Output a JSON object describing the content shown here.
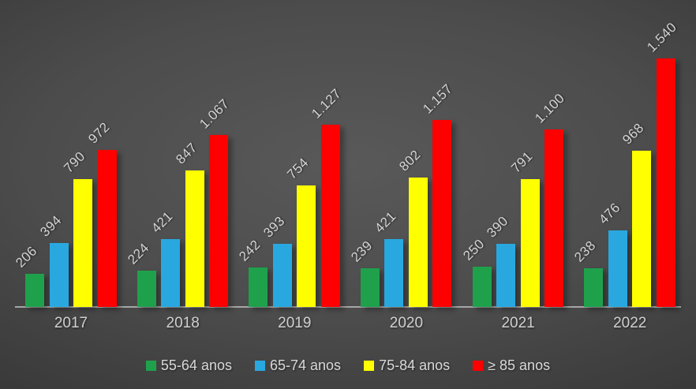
{
  "chart_data": {
    "type": "bar",
    "title": "",
    "xlabel": "",
    "ylabel": "",
    "categories": [
      "2017",
      "2018",
      "2019",
      "2020",
      "2021",
      "2022"
    ],
    "series": [
      {
        "name": "55-64 anos",
        "color": "#1fa14c",
        "values": [
          206,
          224,
          242,
          239,
          250,
          238
        ],
        "labels": [
          "206",
          "224",
          "242",
          "239",
          "250",
          "238"
        ]
      },
      {
        "name": "65-74 anos",
        "color": "#29a8e0",
        "values": [
          394,
          421,
          393,
          421,
          390,
          476
        ],
        "labels": [
          "394",
          "421",
          "393",
          "421",
          "390",
          "476"
        ]
      },
      {
        "name": "75-84 anos",
        "color": "#ffff00",
        "values": [
          790,
          847,
          754,
          802,
          791,
          968
        ],
        "labels": [
          "790",
          "847",
          "754",
          "802",
          "791",
          "968"
        ]
      },
      {
        "name": "≥ 85 anos",
        "color": "#fe0000",
        "values": [
          972,
          1067,
          1127,
          1157,
          1100,
          1540
        ],
        "labels": [
          "972",
          "1.067",
          "1.127",
          "1.157",
          "1.100",
          "1.540"
        ]
      }
    ],
    "ylim": [
      0,
      1540
    ],
    "grid": false,
    "y_axis_visible": false,
    "legend_position": "bottom",
    "data_label_rotation_deg": -45,
    "style": {
      "background_center": "#595959",
      "background_edge": "#272727",
      "axis_line_color": "#a6a6a6",
      "axis_label_color": "#d0d0d0",
      "data_label_color": "#d4d4d4",
      "legend_text_color": "#d9d9d9"
    }
  }
}
